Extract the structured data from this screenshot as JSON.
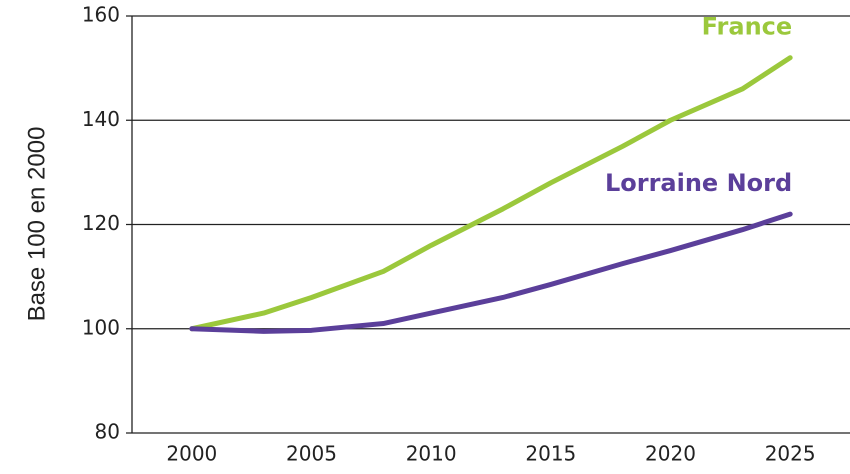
{
  "chart_data": {
    "type": "line",
    "y_label": "Base 100 en 2000",
    "x": [
      2000,
      2003,
      2005,
      2008,
      2010,
      2013,
      2015,
      2018,
      2020,
      2023,
      2025
    ],
    "series": [
      {
        "name": "France",
        "color": "#9bc83c",
        "values": [
          100,
          103,
          106,
          111,
          116,
          123,
          128,
          135,
          140,
          146,
          152
        ]
      },
      {
        "name": "Lorraine Nord",
        "color": "#5b3f9a",
        "values": [
          100,
          99.5,
          99.7,
          101,
          103,
          106,
          108.5,
          112.5,
          115,
          119,
          122
        ]
      }
    ],
    "xlim": [
      1997.5,
      2027.5
    ],
    "xticks": [
      2000,
      2005,
      2010,
      2015,
      2020,
      2025
    ],
    "ylim": [
      80,
      160
    ],
    "yticks": [
      80,
      100,
      120,
      140,
      160
    ],
    "grid": true
  }
}
